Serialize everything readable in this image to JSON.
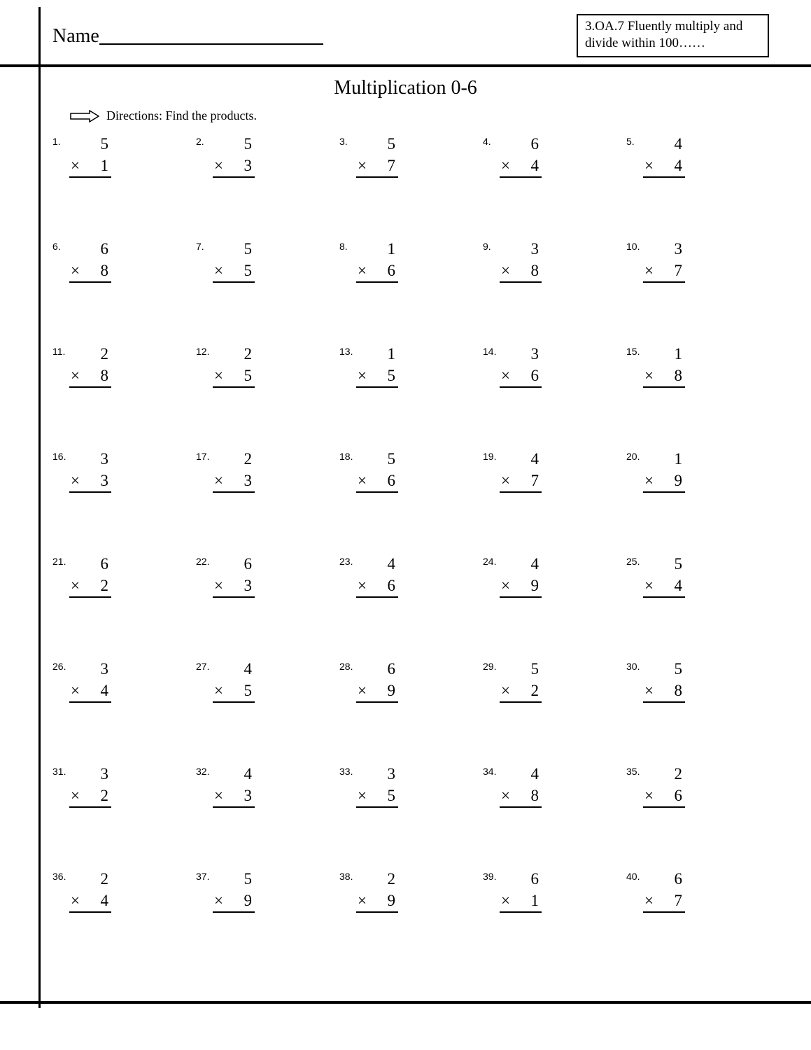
{
  "header": {
    "name_label": "Name",
    "standard_text": "3.OA.7 Fluently multiply and divide within 100……"
  },
  "title": "Multiplication 0-6",
  "directions": "Directions: Find the products.",
  "operator": "×",
  "layout": {
    "columns": 5,
    "rows": 8
  },
  "problems": [
    {
      "n": 1,
      "a": 5,
      "b": 1
    },
    {
      "n": 2,
      "a": 5,
      "b": 3
    },
    {
      "n": 3,
      "a": 5,
      "b": 7
    },
    {
      "n": 4,
      "a": 6,
      "b": 4
    },
    {
      "n": 5,
      "a": 4,
      "b": 4
    },
    {
      "n": 6,
      "a": 6,
      "b": 8
    },
    {
      "n": 7,
      "a": 5,
      "b": 5
    },
    {
      "n": 8,
      "a": 1,
      "b": 6
    },
    {
      "n": 9,
      "a": 3,
      "b": 8
    },
    {
      "n": 10,
      "a": 3,
      "b": 7
    },
    {
      "n": 11,
      "a": 2,
      "b": 8
    },
    {
      "n": 12,
      "a": 2,
      "b": 5
    },
    {
      "n": 13,
      "a": 1,
      "b": 5
    },
    {
      "n": 14,
      "a": 3,
      "b": 6
    },
    {
      "n": 15,
      "a": 1,
      "b": 8
    },
    {
      "n": 16,
      "a": 3,
      "b": 3
    },
    {
      "n": 17,
      "a": 2,
      "b": 3
    },
    {
      "n": 18,
      "a": 5,
      "b": 6
    },
    {
      "n": 19,
      "a": 4,
      "b": 7
    },
    {
      "n": 20,
      "a": 1,
      "b": 9
    },
    {
      "n": 21,
      "a": 6,
      "b": 2
    },
    {
      "n": 22,
      "a": 6,
      "b": 3
    },
    {
      "n": 23,
      "a": 4,
      "b": 6
    },
    {
      "n": 24,
      "a": 4,
      "b": 9
    },
    {
      "n": 25,
      "a": 5,
      "b": 4
    },
    {
      "n": 26,
      "a": 3,
      "b": 4
    },
    {
      "n": 27,
      "a": 4,
      "b": 5
    },
    {
      "n": 28,
      "a": 6,
      "b": 9
    },
    {
      "n": 29,
      "a": 5,
      "b": 2
    },
    {
      "n": 30,
      "a": 5,
      "b": 8
    },
    {
      "n": 31,
      "a": 3,
      "b": 2
    },
    {
      "n": 32,
      "a": 4,
      "b": 3
    },
    {
      "n": 33,
      "a": 3,
      "b": 5
    },
    {
      "n": 34,
      "a": 4,
      "b": 8
    },
    {
      "n": 35,
      "a": 2,
      "b": 6
    },
    {
      "n": 36,
      "a": 2,
      "b": 4
    },
    {
      "n": 37,
      "a": 5,
      "b": 9
    },
    {
      "n": 38,
      "a": 2,
      "b": 9
    },
    {
      "n": 39,
      "a": 6,
      "b": 1
    },
    {
      "n": 40,
      "a": 6,
      "b": 7
    }
  ],
  "colors": {
    "text": "#000000",
    "background": "#ffffff",
    "rules": "#000000"
  },
  "typography": {
    "body_font": "Comic Sans MS",
    "title_fontsize": 28,
    "name_fontsize": 28,
    "standard_fontsize": 19,
    "directions_fontsize": 18,
    "problem_fontsize": 23,
    "problem_number_fontsize": 14
  }
}
